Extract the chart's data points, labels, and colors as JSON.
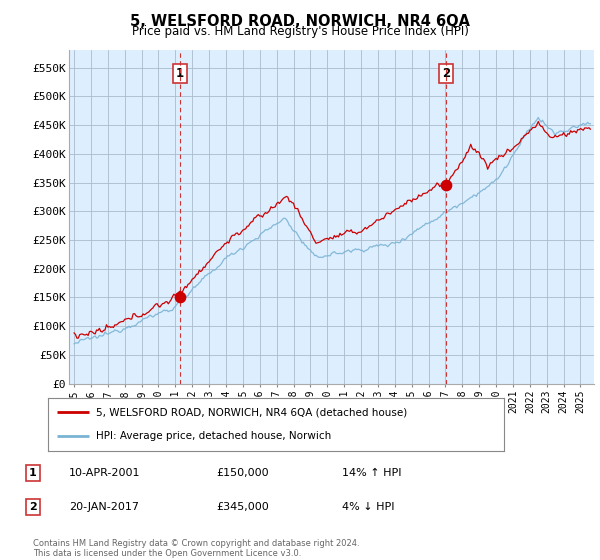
{
  "title": "5, WELSFORD ROAD, NORWICH, NR4 6QA",
  "subtitle": "Price paid vs. HM Land Registry's House Price Index (HPI)",
  "ylim": [
    0,
    580000
  ],
  "yticks": [
    0,
    50000,
    100000,
    150000,
    200000,
    250000,
    300000,
    350000,
    400000,
    450000,
    500000,
    550000
  ],
  "ytick_labels": [
    "£0",
    "£50K",
    "£100K",
    "£150K",
    "£200K",
    "£250K",
    "£300K",
    "£350K",
    "£400K",
    "£450K",
    "£500K",
    "£550K"
  ],
  "sale1_date": 2001.27,
  "sale1_price": 150000,
  "sale1_label": "1",
  "sale2_date": 2017.05,
  "sale2_price": 345000,
  "sale2_label": "2",
  "line_color_red": "#cc0000",
  "line_color_blue": "#7ab3d4",
  "vline_color": "#cc3333",
  "background_color": "#ffffff",
  "plot_bg_color": "#ddeeff",
  "grid_color": "#aabbcc",
  "legend1_text": "5, WELSFORD ROAD, NORWICH, NR4 6QA (detached house)",
  "legend2_text": "HPI: Average price, detached house, Norwich",
  "footer": "Contains HM Land Registry data © Crown copyright and database right 2024.\nThis data is licensed under the Open Government Licence v3.0.",
  "xstart": 1994.7,
  "xend": 2025.8
}
